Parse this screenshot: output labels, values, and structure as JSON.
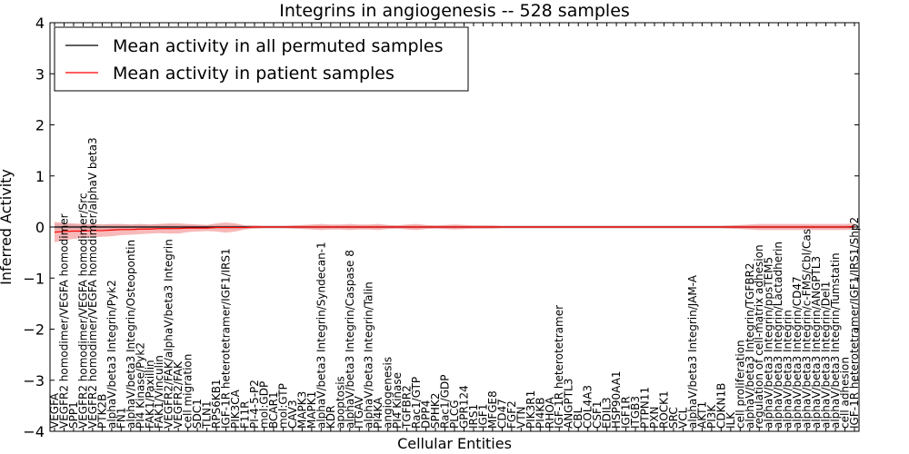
{
  "chart_data": {
    "type": "line",
    "title": "Integrins in angiogenesis -- 528 samples",
    "xlabel": "Cellular Entities",
    "ylabel": "Inferred Activity",
    "ylim": [
      -4,
      4
    ],
    "yticks": [
      -4,
      -3,
      -2,
      -1,
      0,
      1,
      2,
      3,
      4
    ],
    "grid": false,
    "legend_position": "top-left",
    "categories": [
      "VEGFA",
      "VEGFR2 homodimer/VEGFA homodimer",
      "SPP1",
      "VEGFR2 homodimer/VEGFA homodimer/Src",
      "VEGFR2 homodimer/VEGFA homodimer/alphaV beta3",
      "PTK2B",
      "alphaV/beta3 Integrin/Pyk2",
      "FN1",
      "alphaV/beta3 Integrin/Osteopontin",
      "PI4 Kinase/Pyk2",
      "FAK1/Paxillin",
      "FAK1/Vinculin",
      "VEGFR2/FAK/alphaV/beta3 Integrin",
      "VEGFR2/FAK",
      "cell migration",
      "SDC1",
      "TLN1",
      "RPS6KB1",
      "IGF-1R heterotetramer/IGF1/IRS1",
      "PIK3CA",
      "F11R",
      "PI-4-5-P2",
      "mol:GDP",
      "BCAR1",
      "mol:GTP",
      "CAV3",
      "MAPK3",
      "MAPK1",
      "alphaV/beta3 Integrin/Syndecan-1",
      "KDR",
      "apoptosis",
      "alphaV/beta3 Integrin/Caspase 8",
      "ITGAV",
      "alphaV/beta3 Integrin/Talin",
      "PI4KA",
      "angiogenesis",
      "PI4 Kinase",
      "TGFBR2",
      "Rac1/GTP",
      "DPP4",
      "SPHK2",
      "Rac1/GDP",
      "PLCG",
      "GPR124",
      "IRS1",
      "IGF1",
      "MFGE8",
      "CD47",
      "FGF2",
      "VTN",
      "PIK3R1",
      "PI4KB",
      "RHOA",
      "IGF-1R heterotetramer",
      "ANGPTL3",
      "CBL",
      "COL4A3",
      "CSF1",
      "EDIL3",
      "HSP90AA1",
      "IGF1R",
      "ITGB3",
      "PTPN11",
      "PXN",
      "ROCK1",
      "SRC",
      "VCL",
      "alphaV/beta3 Integrin/JAM-A",
      "AKT1",
      "PI3K",
      "CDKN1B",
      "ILK",
      "cell proliferation",
      "alphaV/beta3 Integrin/TGFBR2",
      "regulation of cell-matrix adhesion",
      "alphaV/beta3 Integrin/ppsTEM5",
      "alphaV/beta3 Integrin/Lactadherin",
      "alphaV/beta3 Integrin",
      "alphaV/beta3 Integrin/CD47",
      "alphaV/beta3 Integrin/c-FMS/Cbl/Cas",
      "alphaV/beta3 Integrin/ANGPTL3",
      "alphaV/beta3 Integrin/Del1",
      "alphaV/beta3 Integrin/Tumstatin",
      "cell adhesion",
      "IGF-1R heterotetramer/IGF1/IRS1/Shp2"
    ],
    "series": [
      {
        "name": "Mean activity in all permuted samples",
        "color": "#000000",
        "band_color": "#c9c9c9",
        "values": [
          0,
          0,
          0,
          0,
          0,
          0,
          0,
          0,
          0,
          0,
          0,
          0,
          0,
          0,
          0,
          0,
          0,
          0,
          0,
          0,
          0,
          0,
          0,
          0,
          0,
          0,
          0,
          0,
          0,
          0,
          0,
          0,
          0,
          0,
          0,
          0,
          0,
          0,
          0,
          0,
          0,
          0,
          0,
          0,
          0,
          0,
          0,
          0,
          0,
          0,
          0,
          0,
          0,
          0,
          0,
          0,
          0,
          0,
          0,
          0,
          0,
          0,
          0,
          0,
          0,
          0,
          0,
          0,
          0,
          0,
          0,
          0,
          0,
          0,
          0,
          0,
          0,
          0,
          0,
          0,
          0,
          0,
          0,
          0,
          0
        ],
        "band_half_width": [
          0.06,
          0.06,
          0.05,
          0.05,
          0.05,
          0.05,
          0.05,
          0.05,
          0.05,
          0.05,
          0.05,
          0.05,
          0.05,
          0.04,
          0.04,
          0.04,
          0.04,
          0.04,
          0.04,
          0.04,
          0.03,
          0.03,
          0.03,
          0.03,
          0.03,
          0.03,
          0.03,
          0.03,
          0.03,
          0.03,
          0.03,
          0.03,
          0.03,
          0.03,
          0.03,
          0.03,
          0.03,
          0.03,
          0.03,
          0.03,
          0.03,
          0.03,
          0.03,
          0.03,
          0.03,
          0.03,
          0.03,
          0.03,
          0.03,
          0.03,
          0.03,
          0.03,
          0.03,
          0.03,
          0.03,
          0.03,
          0.03,
          0.03,
          0.03,
          0.03,
          0.03,
          0.03,
          0.03,
          0.03,
          0.03,
          0.03,
          0.03,
          0.03,
          0.03,
          0.03,
          0.03,
          0.03,
          0.03,
          0.03,
          0.03,
          0.03,
          0.03,
          0.03,
          0.03,
          0.03,
          0.03,
          0.03,
          0.03,
          0.03,
          0.03
        ]
      },
      {
        "name": "Mean activity in patient samples",
        "color": "#ff0000",
        "band_color": "#f08080",
        "values": [
          -0.1,
          -0.09,
          -0.08,
          -0.08,
          -0.07,
          -0.07,
          -0.06,
          -0.05,
          -0.05,
          -0.04,
          -0.04,
          -0.03,
          -0.03,
          -0.03,
          -0.02,
          -0.02,
          -0.02,
          -0.01,
          -0.01,
          -0.01,
          -0.01,
          0,
          0,
          0,
          0,
          0,
          0,
          0,
          0,
          0,
          0,
          0,
          0,
          0,
          0,
          0,
          0,
          0,
          0,
          0,
          0,
          0,
          0,
          0,
          0,
          0,
          0,
          0,
          0,
          0,
          0,
          0,
          0,
          0,
          0,
          0,
          0,
          0,
          0,
          0,
          0,
          0,
          0,
          0,
          0,
          0,
          0,
          0,
          0,
          0,
          0,
          0,
          0,
          0,
          0,
          0,
          0,
          0,
          0,
          0,
          0,
          0,
          0,
          0,
          0.01
        ],
        "band_half_width": [
          0.2,
          0.17,
          0.15,
          0.14,
          0.13,
          0.12,
          0.12,
          0.11,
          0.1,
          0.1,
          0.09,
          0.09,
          0.1,
          0.1,
          0.08,
          0.07,
          0.06,
          0.08,
          0.1,
          0.08,
          0.04,
          0.03,
          0.02,
          0.02,
          0.02,
          0.03,
          0.04,
          0.05,
          0.06,
          0.05,
          0.05,
          0.06,
          0.05,
          0.05,
          0.06,
          0.04,
          0.03,
          0.05,
          0.06,
          0.04,
          0.03,
          0.04,
          0.05,
          0.04,
          0.03,
          0.03,
          0.03,
          0.02,
          0.02,
          0.02,
          0.02,
          0.02,
          0.02,
          0.02,
          0.02,
          0.02,
          0.02,
          0.02,
          0.02,
          0.02,
          0.02,
          0.02,
          0.02,
          0.02,
          0.02,
          0.02,
          0.02,
          0.02,
          0.02,
          0.02,
          0.02,
          0.03,
          0.04,
          0.05,
          0.06,
          0.06,
          0.06,
          0.06,
          0.06,
          0.06,
          0.06,
          0.06,
          0.06,
          0.06,
          0.06
        ]
      }
    ]
  }
}
